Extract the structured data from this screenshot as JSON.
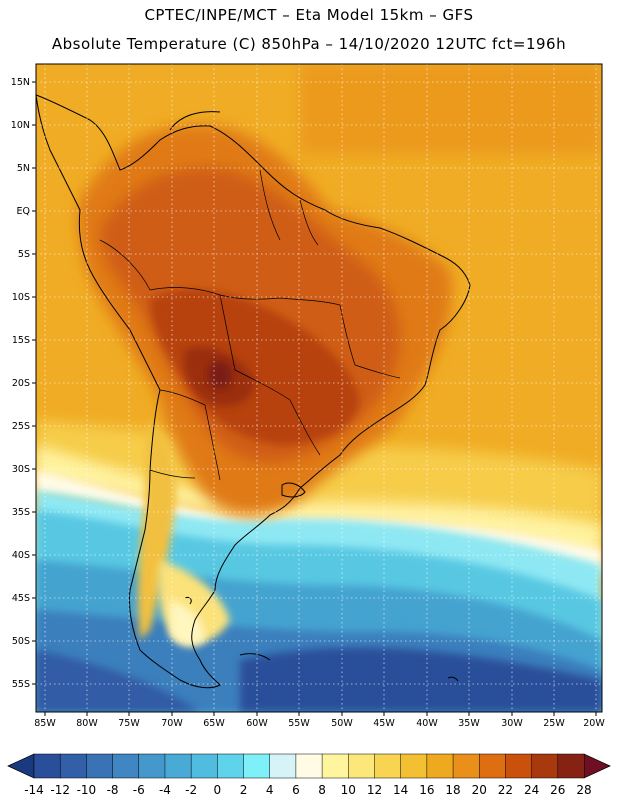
{
  "header": {
    "line1": "CPTEC/INPE/MCT –  Eta Model 15km – GFS",
    "line2": "Absolute Temperature (C) 850hPa – 14/10/2020 12UTC fct=196h"
  },
  "map": {
    "region": "South America",
    "lat_labels": [
      "15N",
      "10N",
      "5N",
      "EQ",
      "5S",
      "10S",
      "15S",
      "20S",
      "25S",
      "30S",
      "35S",
      "40S",
      "45S",
      "50S",
      "55S"
    ],
    "lon_labels": [
      "85W",
      "80W",
      "75W",
      "70W",
      "65W",
      "60W",
      "55W",
      "50W",
      "45W",
      "40W",
      "35W",
      "30W",
      "25W",
      "20W"
    ]
  },
  "colorbar": {
    "ticks": [
      "-14",
      "-12",
      "-10",
      "-8",
      "-6",
      "-4",
      "-2",
      "0",
      "2",
      "4",
      "6",
      "8",
      "10",
      "12",
      "14",
      "16",
      "18",
      "20",
      "22",
      "24",
      "26",
      "28"
    ],
    "colors": [
      "#2a4f9a",
      "#325fa8",
      "#3a72b6",
      "#3f86c2",
      "#4598cc",
      "#4aaad6",
      "#50bcdf",
      "#5fd3ea",
      "#7ef0f8",
      "#d6f4f8",
      "#fffbe4",
      "#fff59e",
      "#fbe77a",
      "#f7d451",
      "#f3bf33",
      "#efa91f",
      "#e8901a",
      "#de6e12",
      "#c9510c",
      "#a8380d",
      "#862214"
    ]
  }
}
